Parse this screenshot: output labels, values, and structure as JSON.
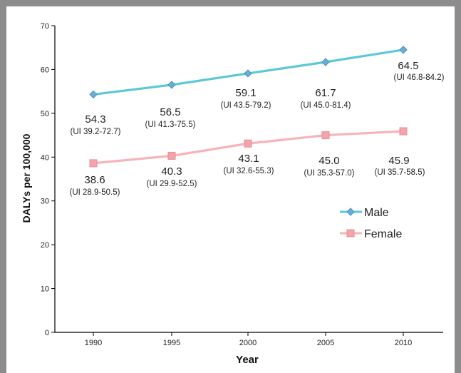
{
  "chart_data": {
    "type": "line",
    "categories": [
      "1990",
      "1995",
      "2000",
      "2005",
      "2010"
    ],
    "ylabel": "DALYs per 100,000",
    "xlabel": "Year",
    "ylim": [
      0,
      70
    ],
    "yticks": [
      0,
      10,
      20,
      30,
      40,
      50,
      60,
      70
    ],
    "grid": false,
    "legend_position": "right",
    "series": [
      {
        "name": "Male",
        "color": "#5bc8d8",
        "marker_color": "#6aaed6",
        "marker": "diamond",
        "values": [
          54.3,
          56.5,
          59.1,
          61.7,
          64.5
        ],
        "labels": [
          "54.3",
          "56.5",
          "59.1",
          "61.7",
          "64.5"
        ],
        "uncertainty": [
          "(UI 39.2-72.7)",
          "(UI 41.3-75.5)",
          "(UI 43.5-79.2)",
          "(UI 45.0-81.4)",
          "(UI 46.8-84.2)"
        ]
      },
      {
        "name": "Female",
        "color": "#f7b3b8",
        "marker_color": "#f4a3aa",
        "marker": "square",
        "values": [
          38.6,
          40.3,
          43.1,
          45.0,
          45.9
        ],
        "labels": [
          "38.6",
          "40.3",
          "43.1",
          "45.0",
          "45.9"
        ],
        "uncertainty": [
          "(UI 28.9-50.5)",
          "(UI 29.9-52.5)",
          "(UI 32.6-55.3)",
          "(UI 35.3-57.0)",
          "(UI 35.7-58.5)"
        ]
      }
    ]
  }
}
